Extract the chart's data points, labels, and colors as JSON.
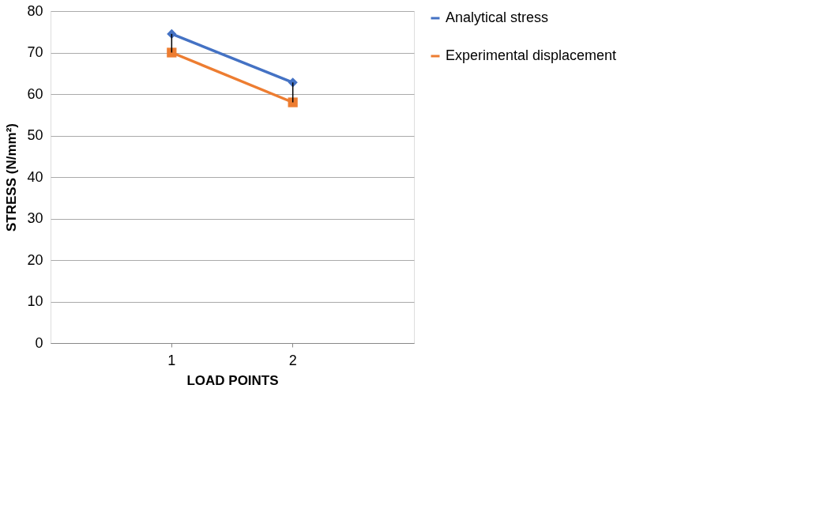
{
  "chart_data": {
    "type": "line",
    "xlabel": "LOAD  POINTS",
    "ylabel": "STRESS (N/mm²)",
    "categories": [
      "1",
      "2"
    ],
    "series": [
      {
        "name": "Analytical stress",
        "color": "#4472c4",
        "marker": "diamond",
        "values": [
          74.5,
          62.8
        ]
      },
      {
        "name": "Experimental displacement",
        "color": "#ed7d31",
        "marker": "square",
        "values": [
          70.0,
          58.0
        ],
        "errors": [
          [
            70.0,
            74.5
          ],
          [
            58.0,
            62.8
          ]
        ]
      }
    ],
    "ylim": [
      0,
      80
    ],
    "yticks": [
      0,
      10,
      20,
      30,
      40,
      50,
      60,
      70,
      80
    ],
    "grid": "y",
    "legend": "right",
    "line_style": "solid"
  }
}
